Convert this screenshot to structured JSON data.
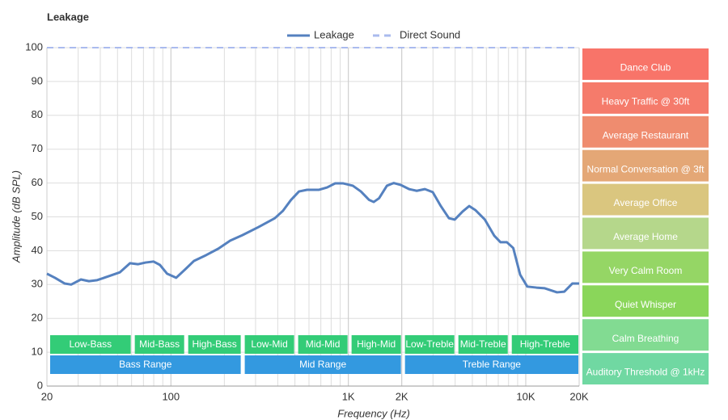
{
  "chart_data": {
    "type": "line",
    "title": "Leakage",
    "x_label": "Frequency (Hz)",
    "y_label": "Amplitude (dB SPL)",
    "xscale": "log",
    "grid": true,
    "xlim": [
      20,
      20000
    ],
    "ylim": [
      0,
      100
    ],
    "xticks": [
      20,
      100,
      {
        "value": 1000,
        "label": "1K"
      },
      {
        "value": 2000,
        "label": "2K"
      },
      {
        "value": 10000,
        "label": "10K"
      },
      {
        "value": 20000,
        "label": "20K"
      }
    ],
    "yticks": [
      0,
      10,
      20,
      30,
      40,
      50,
      60,
      70,
      80,
      90,
      100
    ],
    "series": [
      {
        "name": "Leakage",
        "color": "#5581bf",
        "dashed": false,
        "x": [
          20,
          22.2,
          25.2,
          27.4,
          31.1,
          34.5,
          38.4,
          44.8,
          51.5,
          58.8,
          65.1,
          71.9,
          79.8,
          86.7,
          95.2,
          107,
          121,
          135,
          158,
          185,
          216,
          253,
          312,
          385,
          428,
          475,
          527,
          585,
          684,
          759,
          843,
          936,
          1060,
          1177,
          1310,
          1390,
          1490,
          1650,
          1800,
          1980,
          2200,
          2430,
          2700,
          2990,
          3320,
          3690,
          3980,
          4410,
          4800,
          5200,
          5880,
          6650,
          7210,
          7830,
          8500,
          9300,
          10200,
          11500,
          12800,
          15000,
          16500,
          18300,
          20000
        ],
        "values": [
          33.2,
          32,
          30.3,
          30,
          31.5,
          31,
          31.3,
          32.5,
          33.6,
          36.3,
          36,
          36.5,
          36.8,
          35.8,
          33.2,
          32,
          34.6,
          37,
          38.7,
          40.6,
          43,
          44.6,
          47,
          49.6,
          51.8,
          55,
          57.5,
          58,
          58,
          58.7,
          59.9,
          59.9,
          59.2,
          57.5,
          55,
          54.4,
          55.5,
          59.2,
          60,
          59.4,
          58.2,
          57.7,
          58.2,
          57.3,
          53.2,
          49.6,
          49.2,
          51.6,
          53.2,
          52,
          49.2,
          44.4,
          42.5,
          42.5,
          40.8,
          32.9,
          29.4,
          29.1,
          28.9,
          27.7,
          27.9,
          30.3,
          30.3
        ]
      },
      {
        "name": "Direct Sound",
        "color": "#aabbee",
        "dashed": true,
        "x": [
          20,
          20000
        ],
        "values": [
          100,
          100
        ]
      }
    ],
    "bands": [
      {
        "label": "Low-Bass",
        "range": [
          20,
          60
        ],
        "row": 0
      },
      {
        "label": "Mid-Bass",
        "range": [
          60,
          120
        ],
        "row": 0
      },
      {
        "label": "High-Bass",
        "range": [
          120,
          250
        ],
        "row": 0
      },
      {
        "label": "Low-Mid",
        "range": [
          250,
          500
        ],
        "row": 0
      },
      {
        "label": "Mid-Mid",
        "range": [
          500,
          1000
        ],
        "row": 0
      },
      {
        "label": "High-Mid",
        "range": [
          1000,
          2000
        ],
        "row": 0
      },
      {
        "label": "Low-Treble",
        "range": [
          2000,
          4000
        ],
        "row": 0
      },
      {
        "label": "Mid-Treble",
        "range": [
          4000,
          8000
        ],
        "row": 0
      },
      {
        "label": "High-Treble",
        "range": [
          8000,
          20000
        ],
        "row": 0
      },
      {
        "label": "Bass Range",
        "range": [
          20,
          250
        ],
        "row": 1
      },
      {
        "label": "Mid Range",
        "range": [
          250,
          2000
        ],
        "row": 1
      },
      {
        "label": "Treble Range",
        "range": [
          2000,
          20000
        ],
        "row": 1
      }
    ],
    "band_colors": [
      "#33cc77",
      "#3399e0"
    ],
    "noise_levels": [
      {
        "label": "Dance Club",
        "range": [
          90,
          100
        ],
        "color": "#f87469"
      },
      {
        "label": "Heavy Traffic @ 30ft",
        "range": [
          80,
          90
        ],
        "color": "#f57b6b"
      },
      {
        "label": "Average Restaurant",
        "range": [
          70,
          80
        ],
        "color": "#ef8c6f"
      },
      {
        "label": "Normal Conversation @ 3ft",
        "range": [
          60,
          70
        ],
        "color": "#e4a776"
      },
      {
        "label": "Average Office",
        "range": [
          50,
          60
        ],
        "color": "#dac67f"
      },
      {
        "label": "Average Home",
        "range": [
          40,
          50
        ],
        "color": "#b5d78b"
      },
      {
        "label": "Very Calm Room",
        "range": [
          30,
          40
        ],
        "color": "#95d665"
      },
      {
        "label": "Quiet Whisper",
        "range": [
          20,
          30
        ],
        "color": "#8ad65a"
      },
      {
        "label": "Calm Breathing",
        "range": [
          10,
          20
        ],
        "color": "#82db92"
      },
      {
        "label": "Auditory Threshold @ 1kHz",
        "range": [
          0,
          10
        ],
        "color": "#70d8a2"
      }
    ]
  }
}
